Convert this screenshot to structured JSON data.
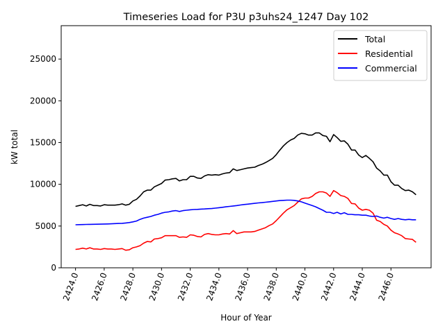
{
  "chart_data": {
    "type": "line",
    "title": "Timeseries Load for P3U p3uhs24_1247  Day 102",
    "xlabel": "Hour of Year",
    "ylabel": "kW total",
    "xlim": [
      2423.0,
      2448.8
    ],
    "ylim": [
      0,
      29000
    ],
    "x_ticks": [
      2424,
      2426,
      2428,
      2430,
      2432,
      2434,
      2436,
      2438,
      2440,
      2442,
      2444,
      2446
    ],
    "x_tick_labels": [
      "2424.0",
      "2426.0",
      "2428.0",
      "2430.0",
      "2432.0",
      "2434.0",
      "2436.0",
      "2438.0",
      "2440.0",
      "2442.0",
      "2444.0",
      "2446.0"
    ],
    "y_ticks": [
      0,
      5000,
      10000,
      15000,
      20000,
      25000
    ],
    "y_tick_labels": [
      "0",
      "5000",
      "10000",
      "15000",
      "20000",
      "25000"
    ],
    "legend_position": "top-right",
    "x_start": 2424.0,
    "x_step": 0.25,
    "series": [
      {
        "name": "Total",
        "color": "#000000",
        "values": [
          7350,
          7450,
          7550,
          7400,
          7600,
          7450,
          7450,
          7400,
          7550,
          7500,
          7500,
          7500,
          7550,
          7650,
          7500,
          7600,
          8000,
          8200,
          8600,
          9100,
          9300,
          9300,
          9700,
          9900,
          10100,
          10500,
          10550,
          10650,
          10700,
          10400,
          10550,
          10550,
          10950,
          10950,
          10750,
          10700,
          11000,
          11150,
          11100,
          11150,
          11100,
          11250,
          11350,
          11400,
          11850,
          11650,
          11750,
          11850,
          11950,
          12000,
          12050,
          12250,
          12400,
          12600,
          12850,
          13100,
          13550,
          14100,
          14600,
          15000,
          15300,
          15500,
          15900,
          16100,
          16050,
          15900,
          15900,
          16150,
          16150,
          15850,
          15750,
          15100,
          15950,
          15600,
          15150,
          15200,
          14800,
          14100,
          14100,
          13500,
          13200,
          13450,
          13100,
          12700,
          11950,
          11600,
          11100,
          11100,
          10300,
          9900,
          9900,
          9500,
          9250,
          9300,
          9100,
          8750
        ]
      },
      {
        "name": "Residential",
        "color": "#ff0000",
        "values": [
          2200,
          2250,
          2350,
          2250,
          2400,
          2250,
          2250,
          2200,
          2300,
          2250,
          2250,
          2200,
          2250,
          2300,
          2100,
          2150,
          2400,
          2500,
          2650,
          2950,
          3150,
          3100,
          3450,
          3500,
          3600,
          3850,
          3850,
          3850,
          3850,
          3650,
          3700,
          3650,
          3950,
          3900,
          3750,
          3700,
          4000,
          4100,
          4000,
          3950,
          3950,
          4050,
          4100,
          4050,
          4450,
          4100,
          4200,
          4300,
          4300,
          4300,
          4350,
          4500,
          4650,
          4800,
          5050,
          5250,
          5650,
          6100,
          6550,
          6950,
          7200,
          7450,
          7850,
          8250,
          8350,
          8350,
          8550,
          8900,
          9100,
          9100,
          8950,
          8550,
          9250,
          9000,
          8650,
          8550,
          8300,
          7700,
          7650,
          7150,
          6900,
          7000,
          6900,
          6550,
          5700,
          5550,
          5200,
          5000,
          4500,
          4200,
          4050,
          3850,
          3500,
          3450,
          3400,
          3050
        ]
      },
      {
        "name": "Commercial",
        "color": "#0000ff",
        "values": [
          5150,
          5170,
          5180,
          5190,
          5200,
          5210,
          5220,
          5230,
          5240,
          5250,
          5270,
          5290,
          5310,
          5330,
          5370,
          5420,
          5500,
          5600,
          5800,
          5950,
          6050,
          6150,
          6300,
          6400,
          6550,
          6650,
          6700,
          6800,
          6850,
          6750,
          6850,
          6900,
          6950,
          6980,
          7000,
          7030,
          7050,
          7080,
          7100,
          7150,
          7200,
          7250,
          7300,
          7350,
          7400,
          7450,
          7520,
          7580,
          7620,
          7670,
          7720,
          7770,
          7800,
          7850,
          7900,
          7950,
          8000,
          8050,
          8080,
          8100,
          8100,
          8080,
          8000,
          7900,
          7750,
          7600,
          7450,
          7300,
          7100,
          6900,
          6650,
          6650,
          6500,
          6650,
          6450,
          6600,
          6400,
          6400,
          6350,
          6350,
          6300,
          6300,
          6200,
          6150,
          6200,
          6050,
          5950,
          6050,
          5900,
          5800,
          5900,
          5800,
          5750,
          5800,
          5750,
          5750
        ]
      }
    ]
  }
}
